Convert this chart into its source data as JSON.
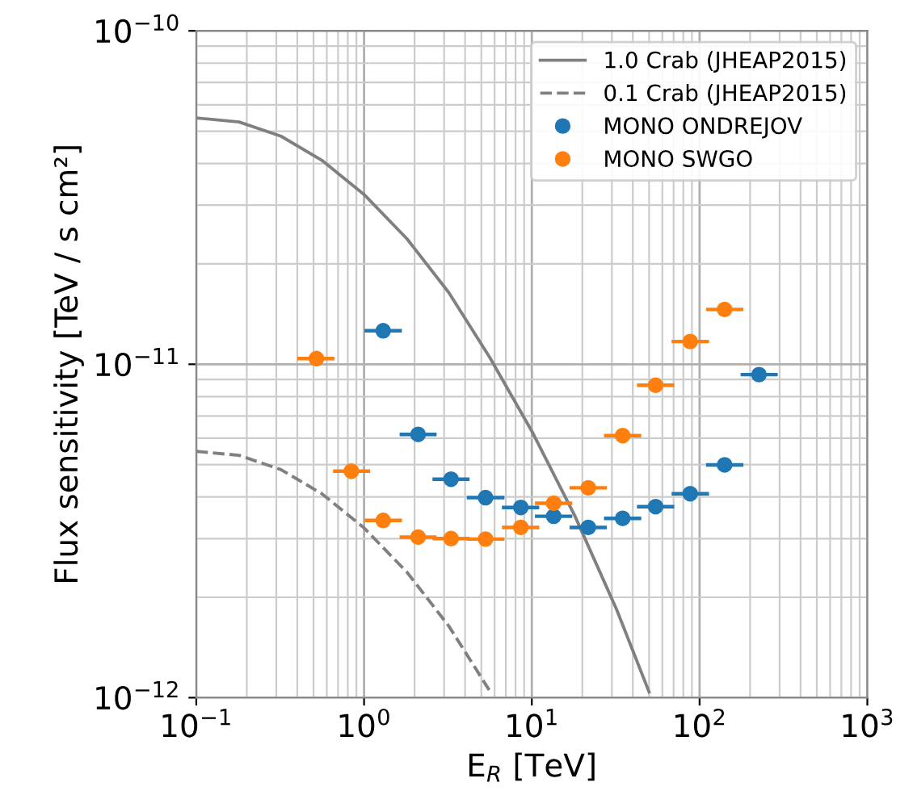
{
  "chart_data": {
    "type": "line",
    "xlabel": "E$_{R}$ [TeV]",
    "ylabel": "Flux sensitivity [TeV / s cm²]",
    "log": "xy",
    "grid": true,
    "legend": "top right",
    "xlim": [
      0.1,
      1000
    ],
    "ylim": [
      1e-12,
      1e-10
    ],
    "xticks": [
      {
        "value": 0.1,
        "label": "10$^{−1}$"
      },
      {
        "value": 1,
        "label": "10$^{0}$"
      },
      {
        "value": 10,
        "label": "10$^{1}$"
      },
      {
        "value": 100,
        "label": "10$^{2}$"
      },
      {
        "value": 1000,
        "label": "10$^{3}$"
      }
    ],
    "yticks": [
      {
        "value": 1e-12,
        "label": "10$^{−12}$"
      },
      {
        "value": 1e-11,
        "label": "10$^{−11}$"
      },
      {
        "value": 1e-10,
        "label": "10$^{−10}$"
      }
    ],
    "series": [
      {
        "name": "1.0 Crab (JHEAP2015)",
        "type": "line",
        "color": "#808080",
        "line_style": "solid",
        "marker": "none",
        "x": [
          0.1,
          0.18,
          0.32,
          0.56,
          1,
          1.8,
          3.2,
          5.6,
          10,
          18,
          32,
          50
        ],
        "values": [
          5.48e-11,
          5.33e-11,
          4.83e-11,
          4.09e-11,
          3.23e-11,
          2.38e-11,
          1.64e-11,
          1.05e-11,
          6.3e-12,
          3.52e-12,
          1.84e-12,
          1.04e-12
        ]
      },
      {
        "name": "0.1 Crab (JHEAP2015)",
        "type": "line",
        "color": "#808080",
        "line_style": "dashed",
        "marker": "none",
        "x": [
          0.1,
          0.18,
          0.32,
          0.56,
          1,
          1.8,
          3.2,
          5.6
        ],
        "values": [
          5.48e-12,
          5.33e-12,
          4.83e-12,
          4.09e-12,
          3.23e-12,
          2.38e-12,
          1.64e-12,
          1.05e-12
        ]
      },
      {
        "name": "MONO ONDREJOV",
        "type": "scatter",
        "color": "#1f77b4",
        "marker": "circle",
        "x": [
          1.3,
          2.1,
          3.3,
          5.3,
          8.6,
          13.5,
          21.7,
          34.8,
          54.7,
          87.9,
          141,
          226
        ],
        "values": [
          1.26e-11,
          6.16e-12,
          4.52e-12,
          3.98e-12,
          3.72e-12,
          3.5e-12,
          3.24e-12,
          3.45e-12,
          3.74e-12,
          4.09e-12,
          4.99e-12,
          9.31e-12
        ],
        "xerrors": [
          [
            1.03,
            1.64
          ],
          [
            1.67,
            2.64
          ],
          [
            2.62,
            4.15
          ],
          [
            4.2,
            6.7
          ],
          [
            6.8,
            10.8
          ],
          [
            10.7,
            17
          ],
          [
            17.2,
            27.3
          ],
          [
            27.6,
            43.8
          ],
          [
            43.4,
            68.9
          ],
          [
            69.8,
            111
          ],
          [
            112,
            178
          ],
          [
            180,
            285
          ]
        ]
      },
      {
        "name": "MONO SWGO",
        "type": "scatter",
        "color": "#ff7f0e",
        "marker": "circle",
        "x": [
          0.52,
          0.84,
          1.3,
          2.1,
          3.3,
          5.3,
          8.6,
          13.5,
          21.7,
          34.8,
          54.7,
          87.9,
          141
        ],
        "values": [
          1.04e-11,
          4.78e-12,
          3.4e-12,
          3.03e-12,
          3e-12,
          2.99e-12,
          3.24e-12,
          3.83e-12,
          4.26e-12,
          6.11e-12,
          8.65e-12,
          1.17e-11,
          1.46e-11
        ],
        "xerrors": [
          [
            0.41,
            0.65
          ],
          [
            0.67,
            1.06
          ],
          [
            1.03,
            1.64
          ],
          [
            1.67,
            2.64
          ],
          [
            2.62,
            4.15
          ],
          [
            4.2,
            6.7
          ],
          [
            6.8,
            10.8
          ],
          [
            10.7,
            17
          ],
          [
            17.2,
            27.3
          ],
          [
            27.6,
            43.8
          ],
          [
            43.4,
            68.9
          ],
          [
            69.8,
            111
          ],
          [
            112,
            178
          ]
        ]
      }
    ]
  }
}
